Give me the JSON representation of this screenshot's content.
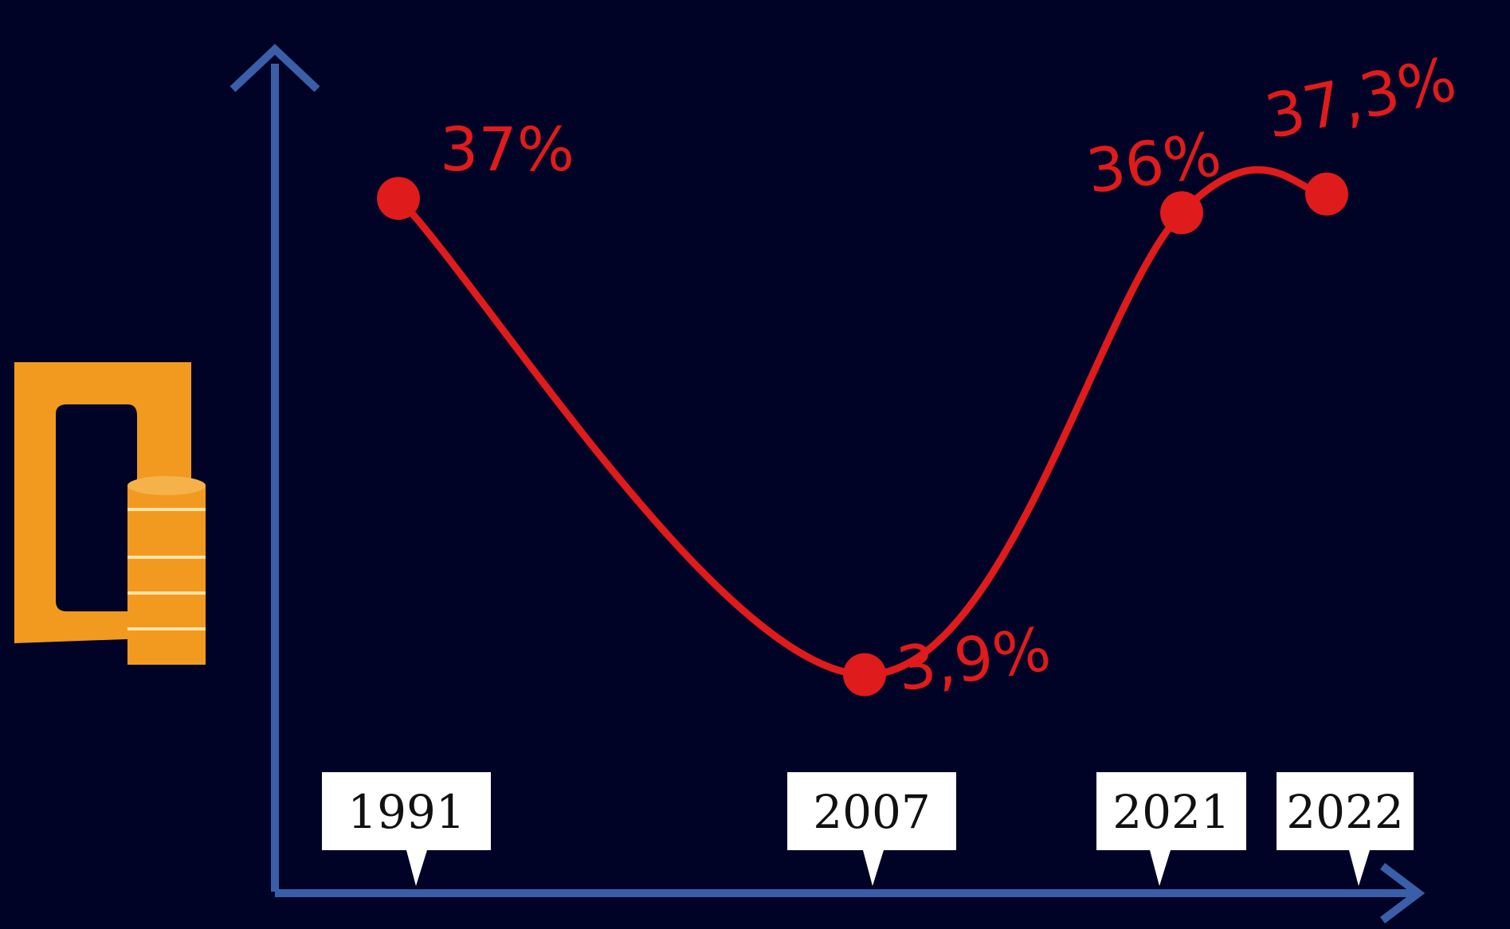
{
  "chart_data": {
    "type": "line",
    "x": [
      "1991",
      "2007",
      "2021",
      "2022"
    ],
    "series": [
      {
        "values": [
          37,
          3.9,
          36,
          37.3
        ]
      }
    ],
    "data_labels": [
      "37%",
      "3,9%",
      "36%",
      "37,3%"
    ],
    "tick_labels": [
      "1991",
      "2007",
      "2021",
      "2022"
    ],
    "ylim": [
      0,
      40
    ],
    "grid": false,
    "legend": "none"
  },
  "colors": {
    "background": "#000326",
    "line": "#e01b1b",
    "axis": "#3a5fa8",
    "tag_fill": "#ffffff",
    "tag_text": "#111111",
    "icon": "#f29a1f"
  },
  "icons": [
    "money-wallet-coins-icon"
  ]
}
